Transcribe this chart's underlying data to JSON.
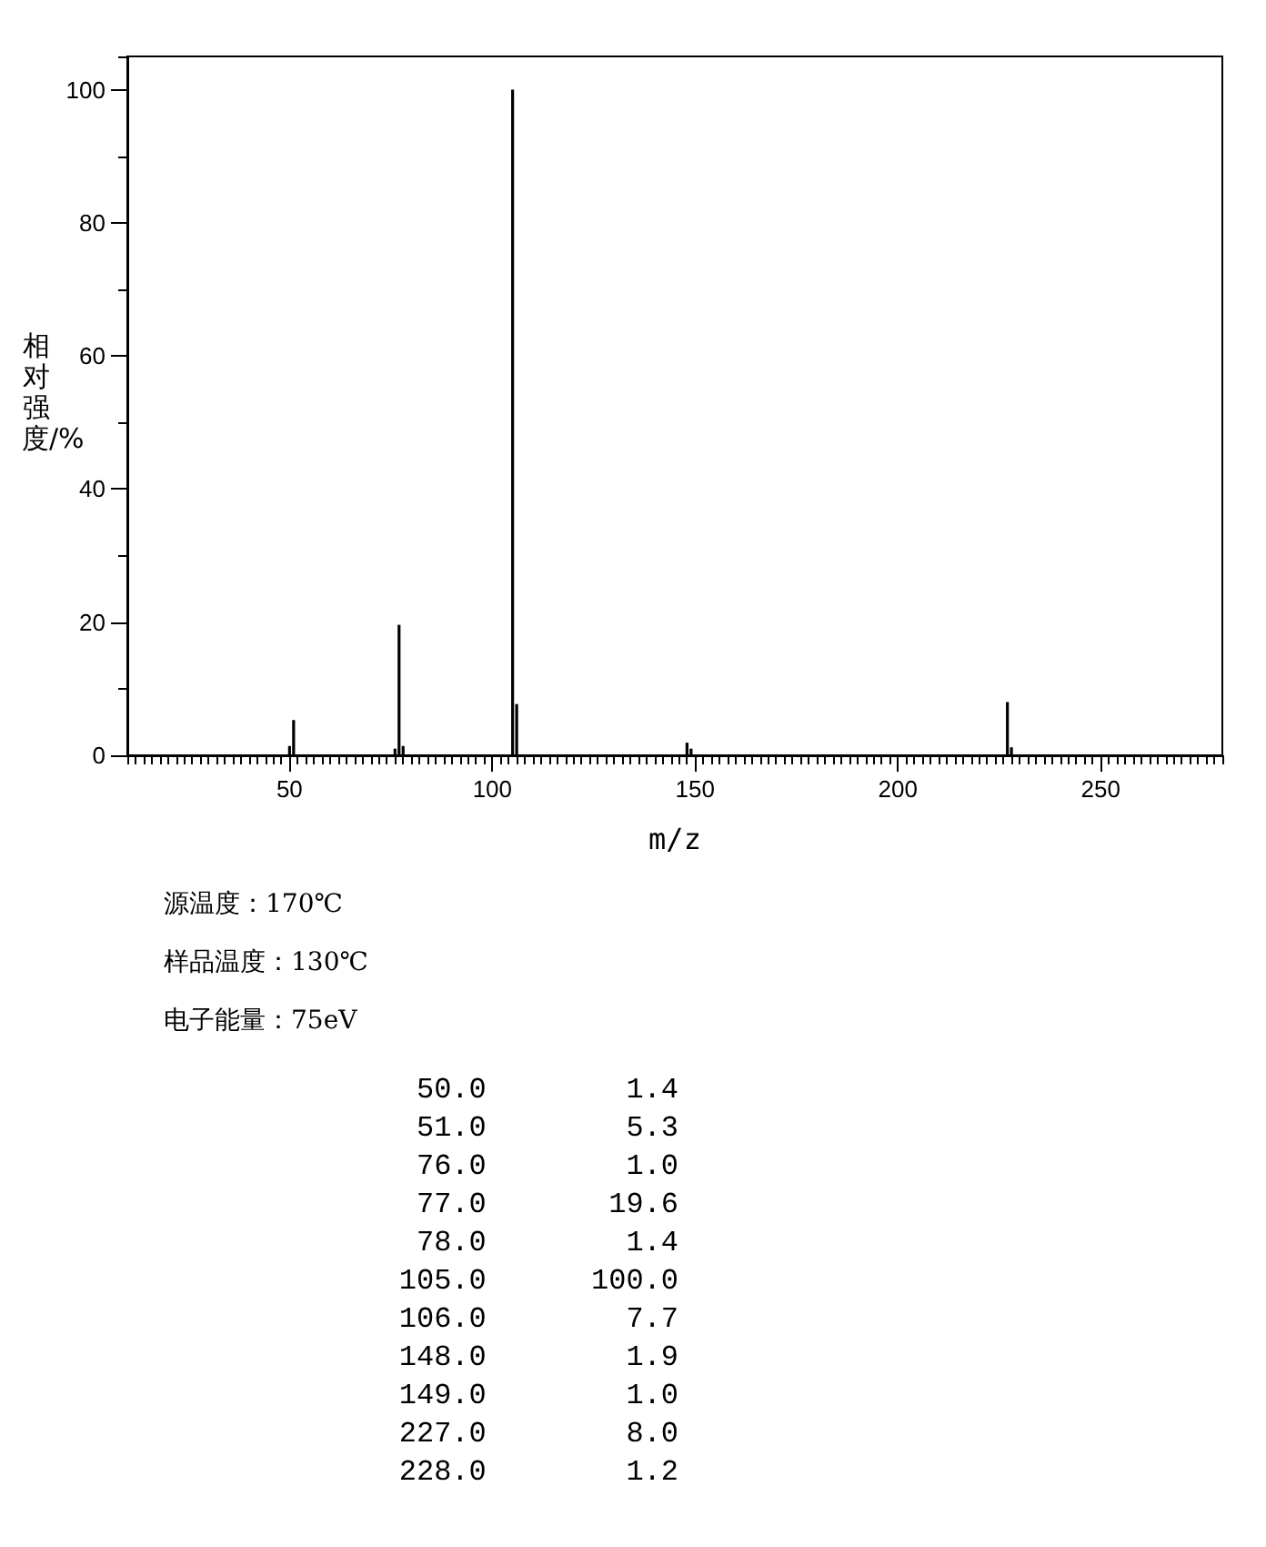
{
  "chart_data": {
    "type": "bar",
    "xlabel": "m/z",
    "ylabel": "相对强度/%",
    "x": [
      50,
      51,
      76,
      77,
      78,
      105,
      106,
      148,
      149,
      227,
      228
    ],
    "values": [
      1.4,
      5.3,
      1.0,
      19.6,
      1.4,
      100.0,
      7.7,
      1.9,
      1.0,
      8.0,
      1.2
    ],
    "color": "#000000",
    "xlim": [
      10,
      280
    ],
    "xticks": [
      50,
      100,
      150,
      200,
      250
    ],
    "ylim": [
      0,
      105
    ],
    "yticks": [
      0,
      20,
      40,
      60,
      80,
      100
    ],
    "annotations": [
      "源温度：170℃",
      "样品温度：130℃",
      "电子能量：75eV",
      "50.0        1.4",
      "51.0        5.3",
      "76.0        1.0",
      "77.0       19.6",
      "78.0        1.4",
      "105.0      100.0",
      "106.0        7.7",
      "148.0        1.9",
      "149.0        1.0",
      "227.0        8.0",
      "228.0        1.2"
    ]
  }
}
